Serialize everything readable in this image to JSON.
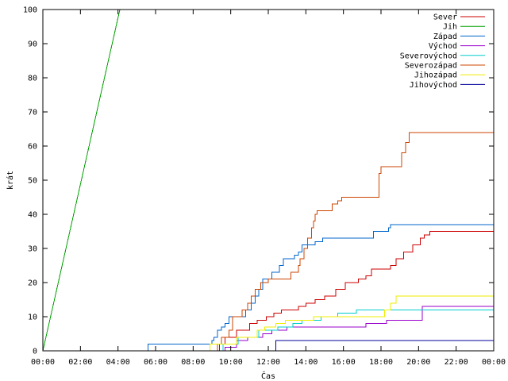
{
  "chart_data": {
    "type": "line",
    "title": "",
    "xlabel": "Čas",
    "ylabel": "krát",
    "xlim": [
      0,
      24
    ],
    "ylim": [
      0,
      100
    ],
    "x_ticks": [
      0,
      2,
      4,
      6,
      8,
      10,
      12,
      14,
      16,
      18,
      20,
      22,
      24
    ],
    "x_tick_labels": [
      "00:00",
      "02:00",
      "04:00",
      "06:00",
      "08:00",
      "10:00",
      "12:00",
      "14:00",
      "16:00",
      "18:00",
      "20:00",
      "22:00",
      "00:00"
    ],
    "y_ticks": [
      0,
      10,
      20,
      30,
      40,
      50,
      60,
      70,
      80,
      90,
      100
    ],
    "y_tick_labels": [
      "0",
      "10",
      "20",
      "30",
      "40",
      "50",
      "60",
      "70",
      "80",
      "90",
      "100"
    ],
    "grid": false,
    "legend_position": "top-right",
    "series": [
      {
        "name": "Sever",
        "color": "#cc0000",
        "step": true,
        "points": [
          [
            0,
            0
          ],
          [
            9.3,
            0
          ],
          [
            9.4,
            2
          ],
          [
            9.7,
            4
          ],
          [
            10.3,
            6
          ],
          [
            11,
            8
          ],
          [
            11.4,
            9
          ],
          [
            11.9,
            10
          ],
          [
            12.3,
            11
          ],
          [
            12.7,
            12
          ],
          [
            13.6,
            13
          ],
          [
            14,
            14
          ],
          [
            14.5,
            15
          ],
          [
            15,
            16
          ],
          [
            15.6,
            18
          ],
          [
            16.1,
            20
          ],
          [
            16.8,
            21
          ],
          [
            17.2,
            22
          ],
          [
            17.5,
            24
          ],
          [
            18.5,
            25
          ],
          [
            18.8,
            27
          ],
          [
            19.2,
            29
          ],
          [
            19.7,
            31
          ],
          [
            20.1,
            33
          ],
          [
            20.3,
            34
          ],
          [
            20.6,
            35
          ],
          [
            24,
            35
          ]
        ]
      },
      {
        "name": "Jih",
        "color": "#00a000",
        "step": false,
        "points": [
          [
            0,
            0
          ],
          [
            4.1,
            100
          ]
        ]
      },
      {
        "name": "Západ",
        "color": "#0066cc",
        "step": true,
        "points": [
          [
            0,
            0
          ],
          [
            5.6,
            0
          ],
          [
            5.6,
            2
          ],
          [
            8.9,
            2
          ],
          [
            9,
            3
          ],
          [
            9.1,
            4
          ],
          [
            9.3,
            6
          ],
          [
            9.5,
            7
          ],
          [
            9.7,
            8
          ],
          [
            9.9,
            10
          ],
          [
            10.7,
            10
          ],
          [
            10.8,
            12
          ],
          [
            11.1,
            14
          ],
          [
            11.3,
            16
          ],
          [
            11.5,
            18
          ],
          [
            11.7,
            21
          ],
          [
            12.2,
            23
          ],
          [
            12.6,
            25
          ],
          [
            12.8,
            27
          ],
          [
            13.4,
            28
          ],
          [
            13.6,
            29
          ],
          [
            13.8,
            31
          ],
          [
            14.5,
            32
          ],
          [
            14.9,
            33
          ],
          [
            17.4,
            33
          ],
          [
            17.6,
            35
          ],
          [
            18.4,
            36
          ],
          [
            18.5,
            37
          ],
          [
            24,
            37
          ]
        ]
      },
      {
        "name": "Východ",
        "color": "#9900cc",
        "step": true,
        "points": [
          [
            0,
            0
          ],
          [
            9.6,
            0
          ],
          [
            9.7,
            1
          ],
          [
            10.3,
            3
          ],
          [
            10.9,
            4
          ],
          [
            11.7,
            5
          ],
          [
            12.2,
            6
          ],
          [
            13,
            7
          ],
          [
            16.9,
            7
          ],
          [
            17.2,
            8
          ],
          [
            18.3,
            9
          ],
          [
            20.2,
            13
          ],
          [
            24,
            13
          ]
        ]
      },
      {
        "name": "Severovýchod",
        "color": "#00cccc",
        "step": true,
        "points": [
          [
            0,
            0
          ],
          [
            9.5,
            0
          ],
          [
            9.6,
            2
          ],
          [
            10.4,
            4
          ],
          [
            11.5,
            6
          ],
          [
            12.5,
            7
          ],
          [
            13.3,
            8
          ],
          [
            13.8,
            9
          ],
          [
            14.8,
            10
          ],
          [
            15.7,
            11
          ],
          [
            16.7,
            12
          ],
          [
            24,
            12
          ]
        ]
      },
      {
        "name": "Severozápad",
        "color": "#cc4400",
        "step": true,
        "points": [
          [
            0,
            0
          ],
          [
            9.1,
            0
          ],
          [
            9.3,
            2
          ],
          [
            9.5,
            4
          ],
          [
            9.9,
            6
          ],
          [
            10.1,
            10
          ],
          [
            10.6,
            12
          ],
          [
            10.9,
            14
          ],
          [
            11.1,
            16
          ],
          [
            11.3,
            18
          ],
          [
            11.6,
            20
          ],
          [
            12,
            21
          ],
          [
            13,
            21
          ],
          [
            13.2,
            23
          ],
          [
            13.6,
            25
          ],
          [
            13.7,
            27
          ],
          [
            13.9,
            30
          ],
          [
            14.1,
            33
          ],
          [
            14.3,
            36
          ],
          [
            14.4,
            38
          ],
          [
            14.5,
            40
          ],
          [
            14.6,
            41
          ],
          [
            15.2,
            41
          ],
          [
            15.4,
            43
          ],
          [
            15.7,
            44
          ],
          [
            15.9,
            45
          ],
          [
            17.6,
            45
          ],
          [
            17.9,
            52
          ],
          [
            18,
            54
          ],
          [
            18.9,
            54
          ],
          [
            19.1,
            58
          ],
          [
            19.3,
            61
          ],
          [
            19.5,
            64
          ],
          [
            24,
            64
          ]
        ]
      },
      {
        "name": "Jihozápad",
        "color": "#eeee00",
        "step": true,
        "points": [
          [
            0,
            0
          ],
          [
            8.7,
            0
          ],
          [
            8.9,
            2
          ],
          [
            10.3,
            4
          ],
          [
            11.4,
            6
          ],
          [
            11.8,
            7
          ],
          [
            12.4,
            8
          ],
          [
            12.9,
            9
          ],
          [
            14.4,
            10
          ],
          [
            15.3,
            10
          ],
          [
            16.3,
            10
          ],
          [
            17.2,
            10
          ],
          [
            18.2,
            12
          ],
          [
            18.5,
            14
          ],
          [
            18.8,
            16
          ],
          [
            24,
            16
          ]
        ]
      },
      {
        "name": "Jihovýchod",
        "color": "#000099",
        "step": true,
        "points": [
          [
            0,
            0
          ],
          [
            12.2,
            0
          ],
          [
            12.4,
            3
          ],
          [
            24,
            3
          ]
        ]
      }
    ]
  }
}
